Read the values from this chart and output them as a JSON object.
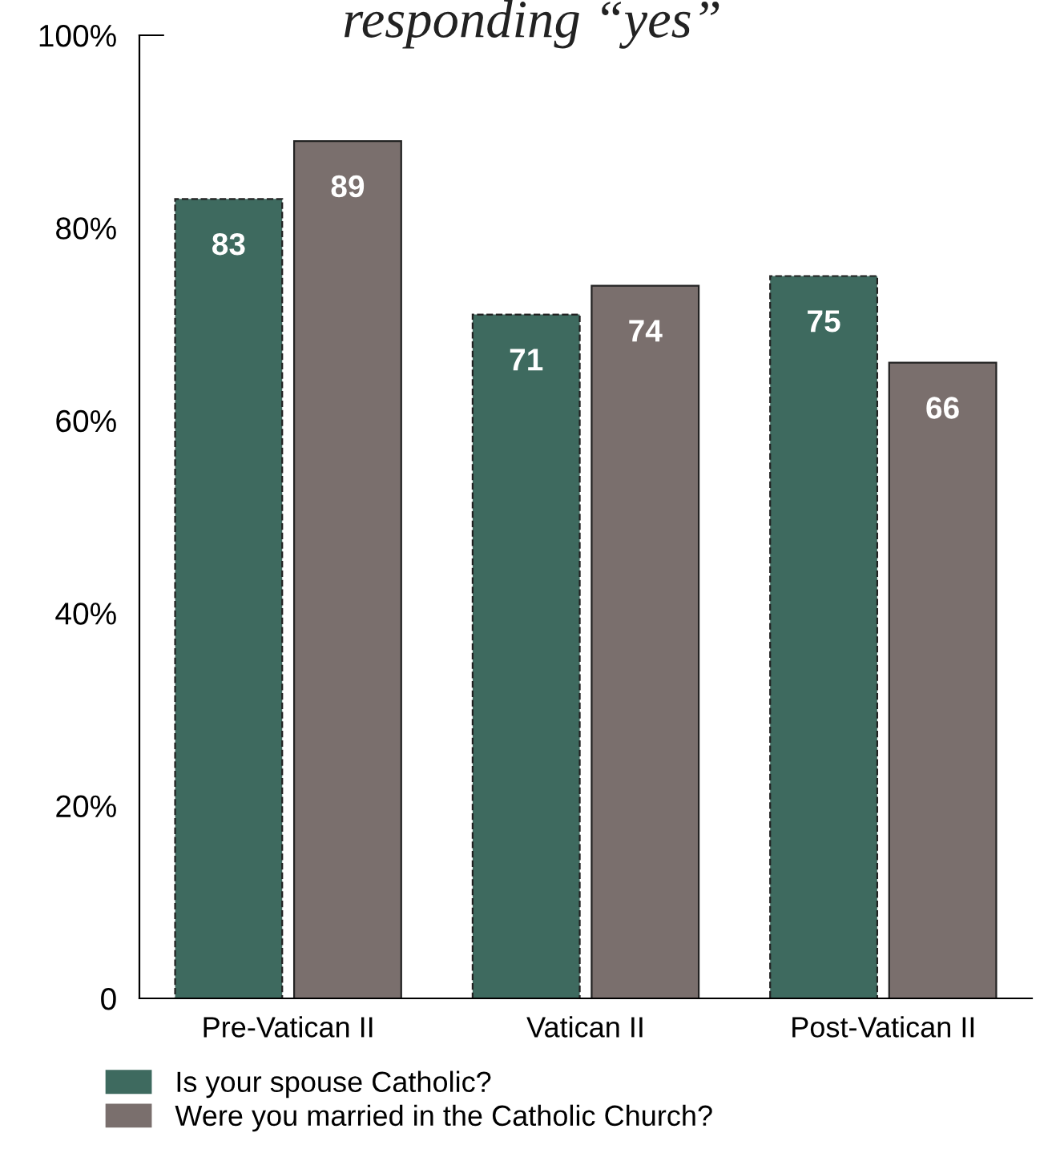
{
  "chart_data": {
    "type": "bar",
    "title": "responding “yes”",
    "categories": [
      "Pre-Vatican II",
      "Vatican II",
      "Post-Vatican II"
    ],
    "series": [
      {
        "name": "Is your spouse Catholic?",
        "color": "#3e6a5f",
        "values": [
          83,
          71,
          75
        ]
      },
      {
        "name": "Were you married in the Catholic Church?",
        "color": "#7a6f6d",
        "values": [
          89,
          74,
          66
        ]
      }
    ],
    "ylim": [
      0,
      100
    ],
    "yticks": [
      {
        "value": 0,
        "label": "0"
      },
      {
        "value": 20,
        "label": "20%"
      },
      {
        "value": 40,
        "label": "40%"
      },
      {
        "value": 60,
        "label": "60%"
      },
      {
        "value": 80,
        "label": "80%"
      },
      {
        "value": 100,
        "label": "100%"
      }
    ],
    "data_labels": true,
    "grid": false,
    "legend": "bottom left"
  }
}
